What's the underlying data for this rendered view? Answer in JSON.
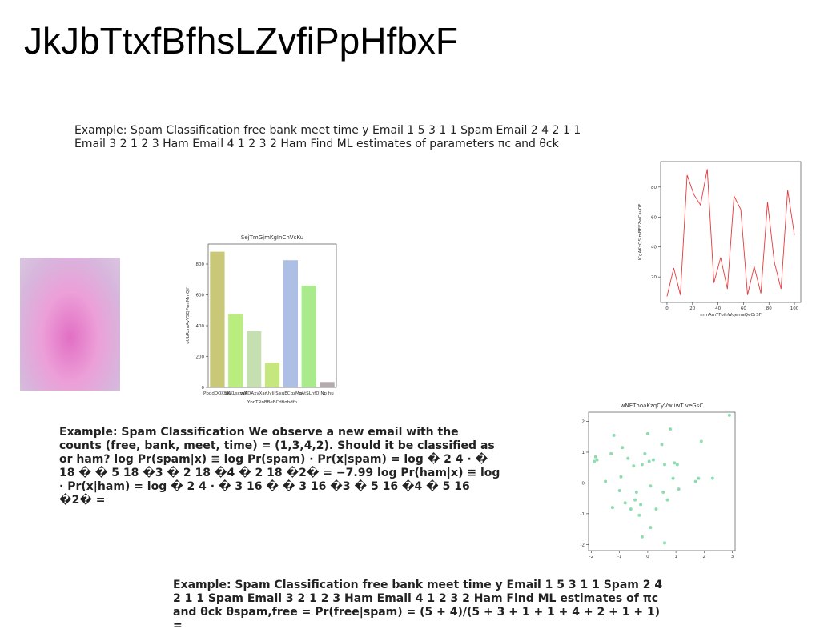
{
  "title": "JkJbTtxfBfhsLZvfiPpHfbxF",
  "texts": [
    "Example: Spam Classification free bank meet time y Email 1 5 3 1 1 Spam Email 2 4 2 1 1 Email 3 2 1 2 3 Ham Email 4 1 2 3 2 Ham Find ML estimates of parameters πc and θck",
    "Example: Spam Classification We observe a new email with the counts (free, bank, meet, time) = (1,3,4,2). Should it be classified as or ham? log Pr(spam|x) ≡ log Pr(spam) · Pr(x|spam) = log � 2 4 · � 18 � � 5 18 �3 � 2 18 �4 � 2 18 �2� = −7.99 log Pr(ham|x) ≡ log · Pr(x|ham) = log � 2 4 · � 3 16 � � 3 16 �3 � 5 16 �4 � 5 16 �2� =",
    "Example: Spam Classification free bank meet time y Email 1 5 3 1 1 Spam 2 4 2 1 1 Spam Email 3 2 1 2 3 Ham Email 4 1 2 3 2 Ham Find ML estimates of πc and θck θspam,free = Pr(free|spam) = (5 + 4)/(5 + 3 + 1 + 1 + 4 + 2 + 1 + 1) ="
  ],
  "charts": [
    {
      "type": "bar",
      "title": "SejTmGjmKgInCnVcKu",
      "x_label": "YpnTRpBBeBCdfigbdfn",
      "y_label": "oUbRzmAvVSQPwnMmQY",
      "categories": [
        "PbqdQOXSW",
        "pKKLscvW",
        "mADAxyXan",
        "UyJjJS",
        "xuECgzMg",
        "bAtSLhfD",
        "Np hu"
      ],
      "values": [
        880,
        475,
        365,
        160,
        825,
        660,
        35
      ],
      "colors": [
        "#c9c878",
        "#b9ee7e",
        "#c5dfb0",
        "#c6e67e",
        "#aebfe6",
        "#a9ea8d",
        "#b4a9ad"
      ],
      "ylim": [
        0,
        930
      ],
      "yticks": [
        0,
        200,
        400,
        600,
        800
      ]
    },
    {
      "type": "line",
      "x_label": "mmAmTFoihWqemaQeOrSF",
      "y_label": "ICgAKxQSimBEFZwCavOF",
      "color": "#e8383b",
      "x": [
        0,
        5.3,
        10.5,
        15.8,
        21.1,
        26.3,
        31.6,
        36.8,
        42.1,
        47.4,
        52.6,
        57.9,
        63.2,
        68.4,
        73.7,
        78.9,
        84.2,
        89.5,
        94.7,
        100
      ],
      "values": [
        7,
        26,
        8,
        88,
        75,
        68,
        92,
        16,
        33,
        12,
        74,
        65,
        8,
        27,
        9,
        70,
        30,
        12,
        78,
        48
      ],
      "xlim": [
        -5,
        105
      ],
      "ylim": [
        3,
        97
      ],
      "xticks": [
        0,
        20,
        40,
        60,
        80,
        100
      ],
      "yticks": [
        20,
        40,
        60,
        80
      ]
    },
    {
      "type": "scatter",
      "title": "wNEThoaKzqCyVwiiwT veGsC",
      "color": "#8fdcb0",
      "x": [
        -1.9,
        -1.85,
        -1.8,
        -1.5,
        -1.3,
        -1.25,
        -1.2,
        -1.0,
        -0.95,
        -0.9,
        -0.8,
        -0.7,
        -0.6,
        -0.5,
        -0.45,
        -0.4,
        -0.3,
        -0.25,
        -0.2,
        -0.2,
        -0.1,
        0,
        0.05,
        0.1,
        0.1,
        0.2,
        0.3,
        0.5,
        0.55,
        0.6,
        0.6,
        0.7,
        0.8,
        0.9,
        0.95,
        1.05,
        1.1,
        1.7,
        1.8,
        1.9,
        2.3,
        2.9
      ],
      "values": [
        0.7,
        0.85,
        0.75,
        0.05,
        0.95,
        -0.8,
        1.55,
        -0.25,
        0.2,
        1.15,
        -0.65,
        0.8,
        -0.85,
        0.55,
        -0.55,
        -0.3,
        -1.05,
        -0.7,
        0.6,
        -1.75,
        0.95,
        1.6,
        0.7,
        -0.1,
        -1.45,
        0.75,
        -0.85,
        1.25,
        -0.3,
        -1.95,
        0.6,
        -0.55,
        1.75,
        0.15,
        0.65,
        0.6,
        -0.2,
        0.05,
        0.15,
        1.35,
        0.15,
        2.2
      ],
      "xlim": [
        -2.1,
        3.1
      ],
      "ylim": [
        -2.2,
        2.3
      ],
      "xticks": [
        -2,
        -1,
        0,
        1,
        2,
        3
      ],
      "yticks": [
        -2,
        -1,
        0,
        1,
        2
      ]
    }
  ]
}
